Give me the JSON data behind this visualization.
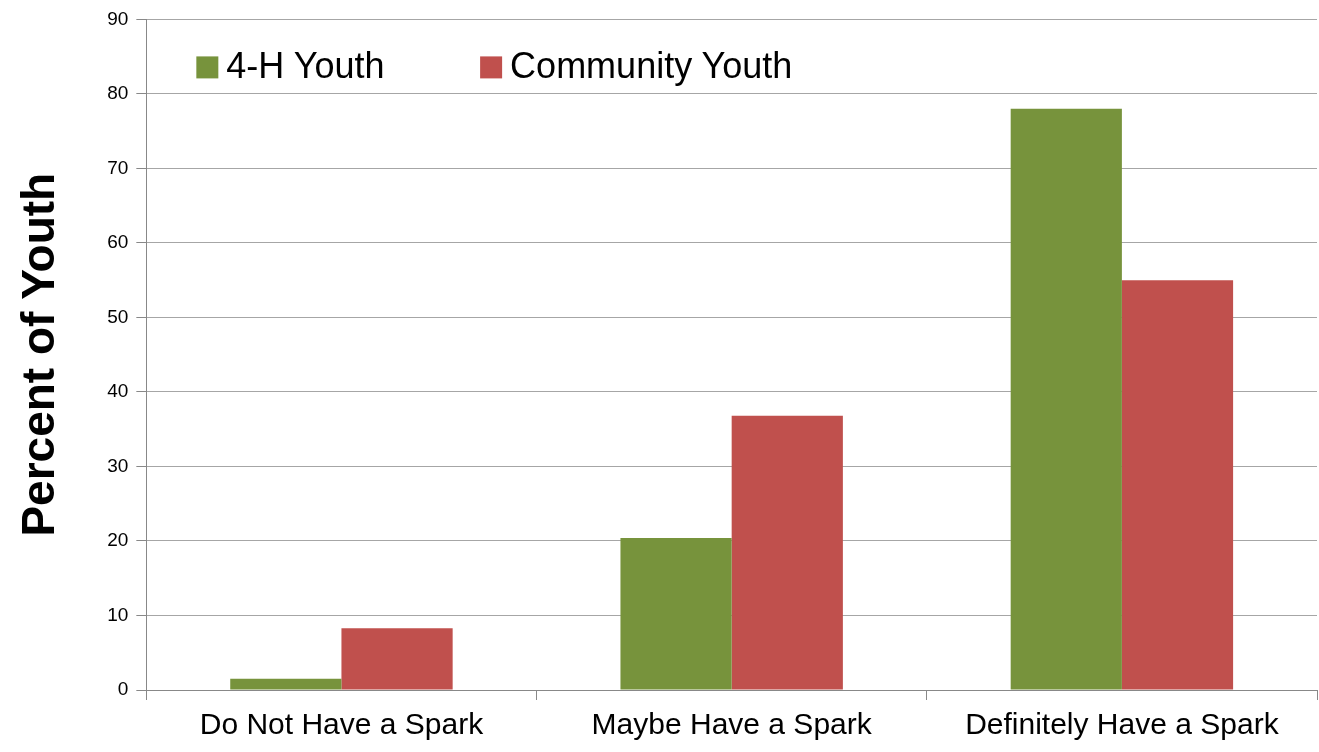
{
  "chart_data": {
    "type": "bar",
    "ylabel": "Percent of Youth",
    "categories": [
      "Do Not Have a Spark",
      "Maybe Have a Spark",
      "Definitely Have a Spark"
    ],
    "series": [
      {
        "name": "4-H Youth",
        "color": "#77933c",
        "values": [
          1.5,
          20.4,
          78
        ]
      },
      {
        "name": "Community Youth",
        "color": "#c0504d",
        "values": [
          8.3,
          36.8,
          55
        ]
      }
    ],
    "ylim": [
      0,
      90
    ],
    "yticks": [
      0,
      10,
      20,
      30,
      40,
      50,
      60,
      70,
      80,
      90
    ],
    "grid": "y",
    "legend": "top left"
  }
}
